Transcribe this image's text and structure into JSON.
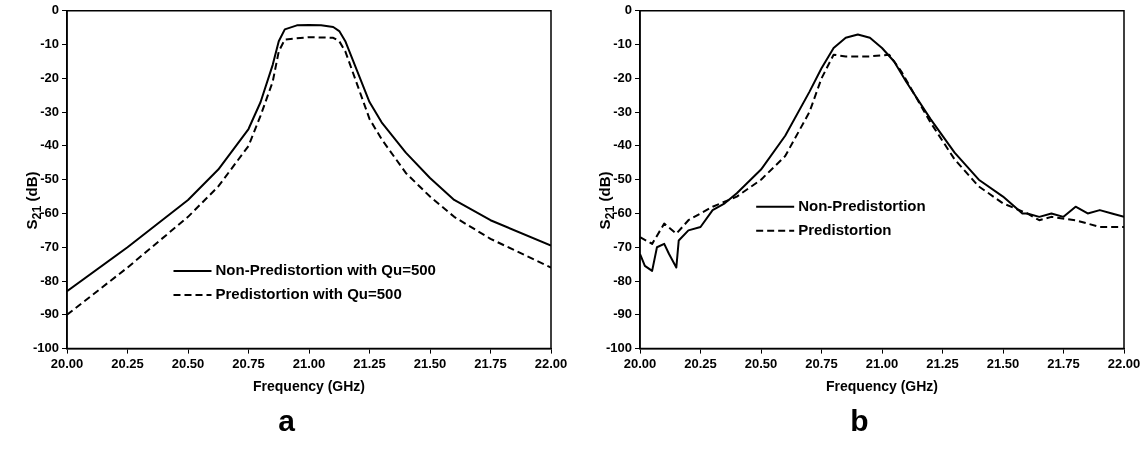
{
  "chart_data": [
    {
      "type": "line",
      "xlabel": "Frequency (GHz)",
      "ylabel": "S$_{21}$ (dB)",
      "annotations": [
        "a"
      ],
      "xlim": [
        20,
        22
      ],
      "ylim": [
        -100,
        0
      ],
      "xticks": [
        {
          "value": 20,
          "label": "20.00"
        },
        {
          "value": 20.25,
          "label": "20.25"
        },
        {
          "value": 20.5,
          "label": "20.50"
        },
        {
          "value": 20.75,
          "label": "20.75"
        },
        {
          "value": 21,
          "label": "21.00"
        },
        {
          "value": 21.25,
          "label": "21.25"
        },
        {
          "value": 21.5,
          "label": "21.50"
        },
        {
          "value": 21.75,
          "label": "21.75"
        },
        {
          "value": 22,
          "label": "22.00"
        }
      ],
      "yticks": [
        -100,
        -90,
        -80,
        -70,
        -60,
        -50,
        -40,
        -30,
        -20,
        -10,
        0
      ],
      "grid": false,
      "legend": "bottom right",
      "marker": "none",
      "series": [
        {
          "name": "Non-Predistortion with Qu=500",
          "color": "#000000",
          "line_style": "solid",
          "x": [
            20,
            20.25,
            20.5,
            20.625,
            20.75,
            20.8,
            20.85,
            20.875,
            20.9,
            20.95,
            21,
            21.05,
            21.1,
            21.125,
            21.15,
            21.2,
            21.25,
            21.3,
            21.4,
            21.5,
            21.6,
            21.75,
            22
          ],
          "values": [
            -83,
            -70,
            -56,
            -47,
            -35,
            -27,
            -16,
            -9,
            -5.5,
            -4.3,
            -4.2,
            -4.3,
            -4.8,
            -6,
            -9,
            -18,
            -27,
            -33,
            -42,
            -49.5,
            -56,
            -62,
            -69.5
          ]
        },
        {
          "name": "Predistortion with Qu=500",
          "color": "#000000",
          "line_style": "dashed",
          "x": [
            20,
            20.25,
            20.5,
            20.625,
            20.75,
            20.8,
            20.85,
            20.875,
            20.9,
            21,
            21.1,
            21.125,
            21.15,
            21.2,
            21.25,
            21.3,
            21.4,
            21.5,
            21.6,
            21.75,
            22
          ],
          "values": [
            -90,
            -76,
            -61,
            -52,
            -40,
            -31,
            -21,
            -12,
            -8.5,
            -7.8,
            -8,
            -9,
            -12,
            -22,
            -32,
            -38,
            -48,
            -55,
            -61,
            -67.5,
            -76
          ]
        }
      ]
    },
    {
      "type": "line",
      "xlabel": "Frequency (GHz)",
      "ylabel": "S$_{21}$ (dB)",
      "annotations": [
        "b"
      ],
      "xlim": [
        20,
        22
      ],
      "ylim": [
        -100,
        0
      ],
      "xticks": [
        {
          "value": 20,
          "label": "20.00"
        },
        {
          "value": 20.25,
          "label": "20.25"
        },
        {
          "value": 20.5,
          "label": "20.50"
        },
        {
          "value": 20.75,
          "label": "20.75"
        },
        {
          "value": 21,
          "label": "21.00"
        },
        {
          "value": 21.25,
          "label": "21.25"
        },
        {
          "value": 21.5,
          "label": "21.50"
        },
        {
          "value": 21.75,
          "label": "21.75"
        },
        {
          "value": 22,
          "label": "22.00"
        }
      ],
      "yticks": [
        -100,
        -90,
        -80,
        -70,
        -60,
        -50,
        -40,
        -30,
        -20,
        -10,
        0
      ],
      "grid": false,
      "legend": "center",
      "marker": "none",
      "series": [
        {
          "name": "Non-Predistortion",
          "color": "#000000",
          "line_style": "solid",
          "x": [
            20,
            20.02,
            20.05,
            20.07,
            20.1,
            20.12,
            20.15,
            20.16,
            20.2,
            20.25,
            20.3,
            20.35,
            20.4,
            20.5,
            20.6,
            20.7,
            20.75,
            20.8,
            20.85,
            20.9,
            20.95,
            21,
            21.05,
            21.1,
            21.2,
            21.3,
            21.4,
            21.5,
            21.58,
            21.6,
            21.65,
            21.7,
            21.75,
            21.8,
            21.85,
            21.9,
            21.95,
            22
          ],
          "values": [
            -72,
            -75.5,
            -77,
            -70,
            -69,
            -72,
            -76,
            -68,
            -65,
            -64,
            -59,
            -57,
            -54,
            -47,
            -37,
            -24,
            -17,
            -11,
            -8,
            -7,
            -8,
            -11,
            -15,
            -21,
            -32,
            -42,
            -50,
            -55,
            -60,
            -60,
            -61,
            -60,
            -61,
            -58,
            -60,
            -59,
            -60,
            -61
          ]
        },
        {
          "name": "Predistortion",
          "color": "#000000",
          "line_style": "dashed",
          "x": [
            20,
            20.05,
            20.1,
            20.15,
            20.2,
            20.25,
            20.3,
            20.4,
            20.5,
            20.6,
            20.7,
            20.75,
            20.8,
            20.85,
            20.95,
            21.03,
            21.08,
            21.2,
            21.3,
            21.4,
            21.5,
            21.6,
            21.65,
            21.7,
            21.8,
            21.9,
            22
          ],
          "values": [
            -67,
            -69,
            -63,
            -66,
            -62,
            -60,
            -58,
            -55,
            -50,
            -43,
            -30,
            -20,
            -13,
            -13.5,
            -13.5,
            -13,
            -18,
            -33,
            -44,
            -52,
            -57,
            -60,
            -62,
            -61,
            -62,
            -64,
            -64
          ]
        }
      ]
    }
  ]
}
